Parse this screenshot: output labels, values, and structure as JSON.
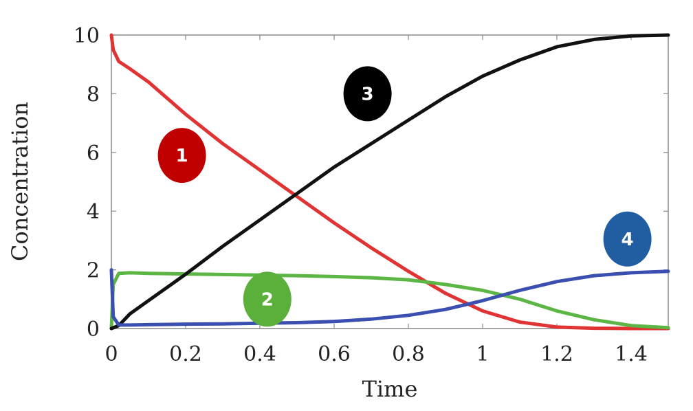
{
  "chart_data": {
    "type": "line",
    "xlabel": "Time",
    "ylabel": "Concentration",
    "xlim": [
      0,
      1.5
    ],
    "ylim": [
      0,
      10
    ],
    "xticks": [
      0,
      0.2,
      0.4,
      0.6,
      0.8,
      1,
      1.2,
      1.4
    ],
    "xtick_labels": [
      "0",
      "0.2",
      "0.4",
      "0.6",
      "0.8",
      "1",
      "1.2",
      "1.4"
    ],
    "yticks": [
      0,
      2,
      4,
      6,
      8,
      10
    ],
    "ytick_labels": [
      "0",
      "2",
      "4",
      "6",
      "8",
      "10"
    ],
    "grid": false,
    "series": [
      {
        "name": "1",
        "color": "#e03333",
        "x": [
          0,
          0.005,
          0.02,
          0.05,
          0.1,
          0.2,
          0.3,
          0.4,
          0.5,
          0.6,
          0.7,
          0.8,
          0.9,
          1.0,
          1.1,
          1.2,
          1.3,
          1.4,
          1.5
        ],
        "y": [
          10,
          9.5,
          9.1,
          8.85,
          8.4,
          7.3,
          6.3,
          5.4,
          4.5,
          3.6,
          2.75,
          1.95,
          1.2,
          0.6,
          0.22,
          0.05,
          0.01,
          0.0,
          0.0
        ]
      },
      {
        "name": "2",
        "color": "#5cb646",
        "x": [
          0,
          0.005,
          0.02,
          0.05,
          0.1,
          0.2,
          0.3,
          0.4,
          0.5,
          0.6,
          0.7,
          0.8,
          0.9,
          1.0,
          1.1,
          1.2,
          1.3,
          1.4,
          1.5
        ],
        "y": [
          0,
          1.5,
          1.88,
          1.9,
          1.88,
          1.86,
          1.84,
          1.82,
          1.8,
          1.77,
          1.73,
          1.66,
          1.5,
          1.3,
          1.0,
          0.6,
          0.3,
          0.1,
          0.03
        ]
      },
      {
        "name": "3",
        "color": "#111111",
        "x": [
          0,
          0.02,
          0.05,
          0.1,
          0.2,
          0.3,
          0.4,
          0.5,
          0.6,
          0.7,
          0.8,
          0.9,
          1.0,
          1.1,
          1.2,
          1.3,
          1.4,
          1.5
        ],
        "y": [
          0,
          0.1,
          0.5,
          0.95,
          1.85,
          2.8,
          3.7,
          4.6,
          5.5,
          6.3,
          7.1,
          7.9,
          8.6,
          9.15,
          9.6,
          9.85,
          9.97,
          10
        ]
      },
      {
        "name": "4",
        "color": "#3a4fb0",
        "x": [
          0,
          0.005,
          0.02,
          0.05,
          0.1,
          0.2,
          0.3,
          0.4,
          0.5,
          0.6,
          0.7,
          0.8,
          0.9,
          1.0,
          1.1,
          1.2,
          1.3,
          1.4,
          1.5
        ],
        "y": [
          2.0,
          0.4,
          0.12,
          0.12,
          0.13,
          0.15,
          0.16,
          0.18,
          0.2,
          0.24,
          0.32,
          0.45,
          0.65,
          0.95,
          1.3,
          1.6,
          1.8,
          1.9,
          1.95
        ]
      }
    ],
    "annotations": [
      {
        "label": "1",
        "color": "#c00000",
        "x": 0.19,
        "y": 5.9
      },
      {
        "label": "2",
        "color": "#5ab03b",
        "x": 0.42,
        "y": 1.0
      },
      {
        "label": "3",
        "color": "#000000",
        "x": 0.69,
        "y": 8.0
      },
      {
        "label": "4",
        "color": "#215ea1",
        "x": 1.39,
        "y": 3.05
      }
    ]
  }
}
